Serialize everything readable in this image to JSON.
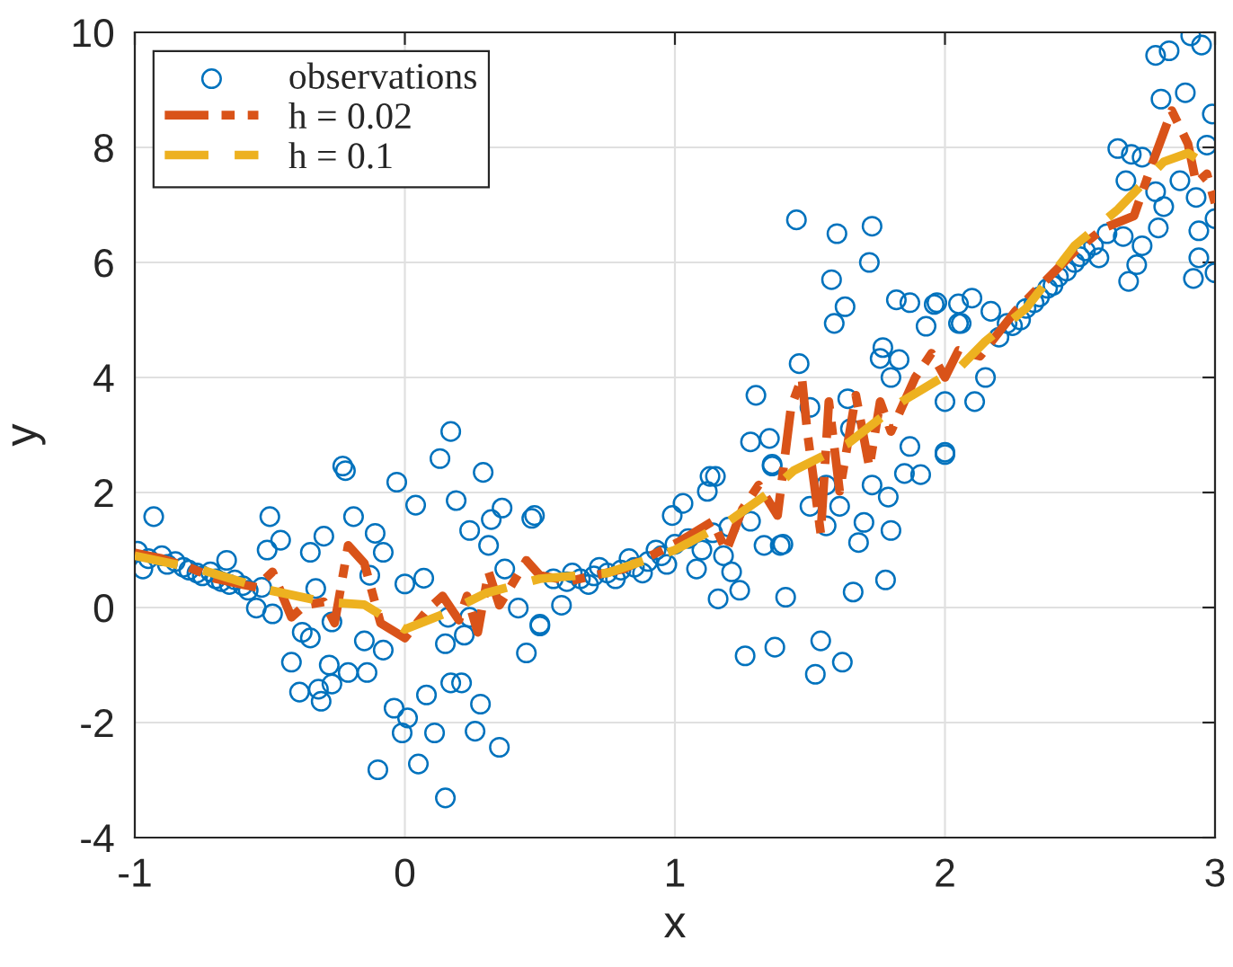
{
  "chart_data": {
    "type": "scatter",
    "xlabel": "x",
    "ylabel": "y",
    "xlim": [
      -1,
      3
    ],
    "ylim": [
      -4,
      10
    ],
    "xticks": [
      -1,
      0,
      1,
      2,
      3
    ],
    "yticks": [
      -4,
      -2,
      0,
      2,
      4,
      6,
      8,
      10
    ],
    "grid": true,
    "legend": "top left",
    "series": [
      {
        "name": "observations",
        "marker": "circle",
        "color": "#0072bd",
        "x": [
          -0.99,
          -0.97,
          -0.95,
          -0.93,
          -0.9,
          -0.88,
          -0.85,
          -0.82,
          -0.8,
          -0.77,
          -0.75,
          -0.72,
          -0.7,
          -0.68,
          -0.66,
          -0.65,
          -0.63,
          -0.6,
          -0.58,
          -0.55,
          -0.53,
          -0.51,
          -0.5,
          -0.49,
          -0.46,
          -0.42,
          -0.39,
          -0.38,
          -0.35,
          -0.35,
          -0.33,
          -0.32,
          -0.31,
          -0.3,
          -0.28,
          -0.27,
          -0.27,
          -0.23,
          -0.22,
          -0.21,
          -0.19,
          -0.15,
          -0.14,
          -0.13,
          -0.11,
          -0.1,
          -0.08,
          -0.08,
          -0.04,
          -0.03,
          -0.01,
          0.0,
          0.01,
          0.04,
          0.05,
          0.07,
          0.08,
          0.11,
          0.13,
          0.15,
          0.15,
          0.16,
          0.17,
          0.17,
          0.19,
          0.21,
          0.22,
          0.24,
          0.24,
          0.26,
          0.28,
          0.29,
          0.31,
          0.32,
          0.35,
          0.36,
          0.37,
          0.42,
          0.45,
          0.47,
          0.48,
          0.5,
          0.5,
          0.55,
          0.58,
          0.6,
          0.62,
          0.65,
          0.68,
          0.7,
          0.72,
          0.75,
          0.78,
          0.8,
          0.83,
          0.85,
          0.88,
          0.9,
          0.93,
          0.95,
          0.97,
          0.99,
          1.0,
          1.03,
          1.05,
          1.08,
          1.1,
          1.12,
          1.13,
          1.14,
          1.15,
          1.16,
          1.18,
          1.2,
          1.21,
          1.24,
          1.26,
          1.28,
          1.28,
          1.3,
          1.33,
          1.35,
          1.36,
          1.36,
          1.37,
          1.39,
          1.4,
          1.41,
          1.45,
          1.46,
          1.5,
          1.5,
          1.52,
          1.54,
          1.56,
          1.56,
          1.58,
          1.59,
          1.6,
          1.61,
          1.62,
          1.63,
          1.64,
          1.65,
          1.66,
          1.68,
          1.7,
          1.72,
          1.73,
          1.73,
          1.76,
          1.77,
          1.78,
          1.79,
          1.8,
          1.8,
          1.82,
          1.83,
          1.85,
          1.87,
          1.87,
          1.91,
          1.93,
          1.96,
          1.97,
          2.0,
          2.0,
          2.0,
          2.05,
          2.05,
          2.06,
          2.1,
          2.11,
          2.15,
          2.17,
          2.2,
          2.23,
          2.25,
          2.28,
          2.3,
          2.33,
          2.35,
          2.38,
          2.4,
          2.42,
          2.45,
          2.48,
          2.5,
          2.52,
          2.55,
          2.57,
          2.6,
          2.64,
          2.66,
          2.67,
          2.68,
          2.69,
          2.71,
          2.73,
          2.73,
          2.78,
          2.78,
          2.79,
          2.8,
          2.81,
          2.83,
          2.87,
          2.89,
          2.91,
          2.92,
          2.93,
          2.94,
          2.94,
          2.95,
          2.97,
          2.99,
          3.0,
          3.0
        ],
        "values": [
          0.98,
          0.67,
          0.85,
          1.58,
          0.9,
          0.75,
          0.8,
          0.7,
          0.65,
          0.6,
          0.55,
          0.62,
          0.5,
          0.45,
          0.82,
          0.4,
          0.48,
          0.38,
          0.3,
          -0.01,
          0.35,
          1.0,
          1.58,
          -0.11,
          1.17,
          -0.95,
          -1.47,
          -0.43,
          0.96,
          -0.53,
          0.33,
          -1.42,
          -1.63,
          1.24,
          -1.0,
          -1.33,
          -0.25,
          2.46,
          2.38,
          -1.13,
          1.58,
          -0.58,
          -1.13,
          0.56,
          1.29,
          -2.82,
          0.96,
          -0.74,
          -1.75,
          2.18,
          -2.18,
          0.41,
          -1.92,
          1.78,
          -2.72,
          0.51,
          -1.52,
          -2.18,
          2.59,
          -3.31,
          -0.63,
          -0.17,
          3.06,
          -1.31,
          1.86,
          -1.31,
          -0.48,
          1.34,
          -0.17,
          -2.15,
          -1.68,
          2.35,
          1.08,
          1.53,
          -2.43,
          1.73,
          0.67,
          -0.01,
          -0.79,
          1.55,
          1.6,
          -0.29,
          -0.32,
          0.5,
          0.04,
          0.45,
          0.6,
          0.5,
          0.4,
          0.55,
          0.7,
          0.6,
          0.5,
          0.65,
          0.85,
          0.7,
          0.6,
          0.8,
          1.0,
          0.9,
          0.75,
          1.6,
          1.1,
          1.81,
          1.2,
          0.67,
          1.0,
          2.02,
          2.28,
          1.3,
          2.28,
          0.15,
          0.9,
          1.4,
          0.62,
          0.3,
          -0.84,
          2.88,
          1.5,
          3.69,
          1.08,
          2.94,
          2.46,
          2.49,
          -0.69,
          1.08,
          1.1,
          0.18,
          6.74,
          4.24,
          3.48,
          1.76,
          -1.16,
          -0.58,
          2.13,
          1.42,
          5.7,
          4.94,
          6.5,
          1.76,
          -0.95,
          5.23,
          3.63,
          3.11,
          0.27,
          1.13,
          1.48,
          6.0,
          2.13,
          6.63,
          4.33,
          4.52,
          0.48,
          1.92,
          4.0,
          1.34,
          5.35,
          4.31,
          2.33,
          5.3,
          2.8,
          2.31,
          4.89,
          5.27,
          5.3,
          2.66,
          2.7,
          3.58,
          4.94,
          5.28,
          4.94,
          5.38,
          3.58,
          4.0,
          5.15,
          4.7,
          4.94,
          4.9,
          5.0,
          5.2,
          5.3,
          5.4,
          5.55,
          5.6,
          5.75,
          5.85,
          6.0,
          6.1,
          6.2,
          6.3,
          6.08,
          6.5,
          7.98,
          6.45,
          7.42,
          5.67,
          7.88,
          5.96,
          7.83,
          6.29,
          9.6,
          7.23,
          6.6,
          8.84,
          6.97,
          9.68,
          7.42,
          8.95,
          9.94,
          5.72,
          7.13,
          6.55,
          6.08,
          9.78,
          8.04,
          8.58,
          6.76,
          5.82
        ]
      },
      {
        "name": "h = 0.02",
        "type": "line",
        "color": "#d95319",
        "line_style": "dashdot",
        "x": [
          -1.0,
          -0.9,
          -0.8,
          -0.7,
          -0.6,
          -0.55,
          -0.49,
          -0.42,
          -0.37,
          -0.3,
          -0.26,
          -0.21,
          -0.15,
          -0.09,
          0.0,
          0.09,
          0.14,
          0.2,
          0.23,
          0.27,
          0.31,
          0.35,
          0.39,
          0.45,
          0.5,
          0.61,
          0.81,
          1.01,
          1.14,
          1.19,
          1.25,
          1.31,
          1.38,
          1.43,
          1.47,
          1.49,
          1.54,
          1.57,
          1.61,
          1.67,
          1.72,
          1.76,
          1.8,
          1.89,
          1.95,
          2.0,
          2.05,
          2.13,
          2.26,
          2.48,
          2.59,
          2.7,
          2.77,
          2.84,
          2.9,
          2.93,
          2.97,
          3.0
        ],
        "values": [
          0.95,
          0.85,
          0.7,
          0.5,
          0.4,
          0.35,
          0.62,
          -0.17,
          0.04,
          0.1,
          -0.27,
          1.08,
          0.77,
          -0.27,
          -0.53,
          -0.01,
          0.2,
          -0.22,
          0.2,
          -0.43,
          0.62,
          0.04,
          0.35,
          0.82,
          0.56,
          0.46,
          0.67,
          1.13,
          1.5,
          0.98,
          1.71,
          2.13,
          1.6,
          3.48,
          4.0,
          3.06,
          1.29,
          3.58,
          2.02,
          3.69,
          2.44,
          3.58,
          3.06,
          4.0,
          4.42,
          4.0,
          4.47,
          4.37,
          5.15,
          6.19,
          6.6,
          6.81,
          7.75,
          8.64,
          8.06,
          7.38,
          7.54,
          7.03
        ]
      },
      {
        "name": "h = 0.1",
        "type": "line",
        "color": "#edb120",
        "line_style": "dashed",
        "x": [
          -1.0,
          -0.75,
          -0.5,
          -0.3,
          -0.15,
          0.0,
          0.15,
          0.3,
          0.5,
          0.75,
          1.0,
          1.2,
          1.35,
          1.44,
          1.64,
          1.84,
          2.06,
          2.15,
          2.3,
          2.48,
          2.64,
          2.81,
          2.9,
          3.0
        ],
        "values": [
          0.9,
          0.65,
          0.3,
          0.1,
          0.05,
          -0.38,
          -0.1,
          0.25,
          0.5,
          0.6,
          1.0,
          1.5,
          2.0,
          2.38,
          2.85,
          3.58,
          4.2,
          4.63,
          5.2,
          6.29,
          6.92,
          7.75,
          7.9,
          7.6
        ]
      }
    ]
  }
}
